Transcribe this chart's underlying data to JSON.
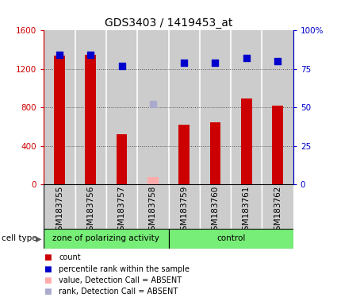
{
  "title": "GDS3403 / 1419453_at",
  "samples": [
    "GSM183755",
    "GSM183756",
    "GSM183757",
    "GSM183758",
    "GSM183759",
    "GSM183760",
    "GSM183761",
    "GSM183762"
  ],
  "counts": [
    1340,
    1350,
    520,
    null,
    620,
    650,
    890,
    820
  ],
  "absent_counts": [
    null,
    null,
    null,
    80,
    null,
    null,
    null,
    null
  ],
  "percentile_ranks_pct": [
    84,
    84,
    77,
    null,
    79,
    79,
    82,
    80
  ],
  "absent_ranks_pct": [
    null,
    null,
    null,
    52,
    null,
    null,
    null,
    null
  ],
  "count_color": "#cc0000",
  "absent_count_color": "#ffaaaa",
  "rank_color": "#0000cc",
  "absent_rank_color": "#aaaacc",
  "bar_width": 0.35,
  "ylim_left": [
    0,
    1600
  ],
  "ylim_right": [
    0,
    100
  ],
  "yticks_left": [
    0,
    400,
    800,
    1200,
    1600
  ],
  "ytick_labels_left": [
    "0",
    "400",
    "800",
    "1200",
    "1600"
  ],
  "ytick_labels_right": [
    "0",
    "25",
    "50",
    "75",
    "100%"
  ],
  "yticks_right": [
    0,
    25,
    50,
    75,
    100
  ],
  "group1_label": "zone of polarizing activity",
  "group2_label": "control",
  "group_bg_color": "#77ee77",
  "cell_type_label": "cell type",
  "legend_items": [
    {
      "label": "count",
      "color": "#cc0000"
    },
    {
      "label": "percentile rank within the sample",
      "color": "#0000cc"
    },
    {
      "label": "value, Detection Call = ABSENT",
      "color": "#ffaaaa"
    },
    {
      "label": "rank, Detection Call = ABSENT",
      "color": "#aaaacc"
    }
  ],
  "tick_label_area_bg": "#cccccc",
  "chart_bg": "#ffffff",
  "grid_color": "#555555",
  "left_axis_color": "#cc0000",
  "right_axis_color": "#0000cc",
  "n_group1": 4,
  "n_group2": 4
}
